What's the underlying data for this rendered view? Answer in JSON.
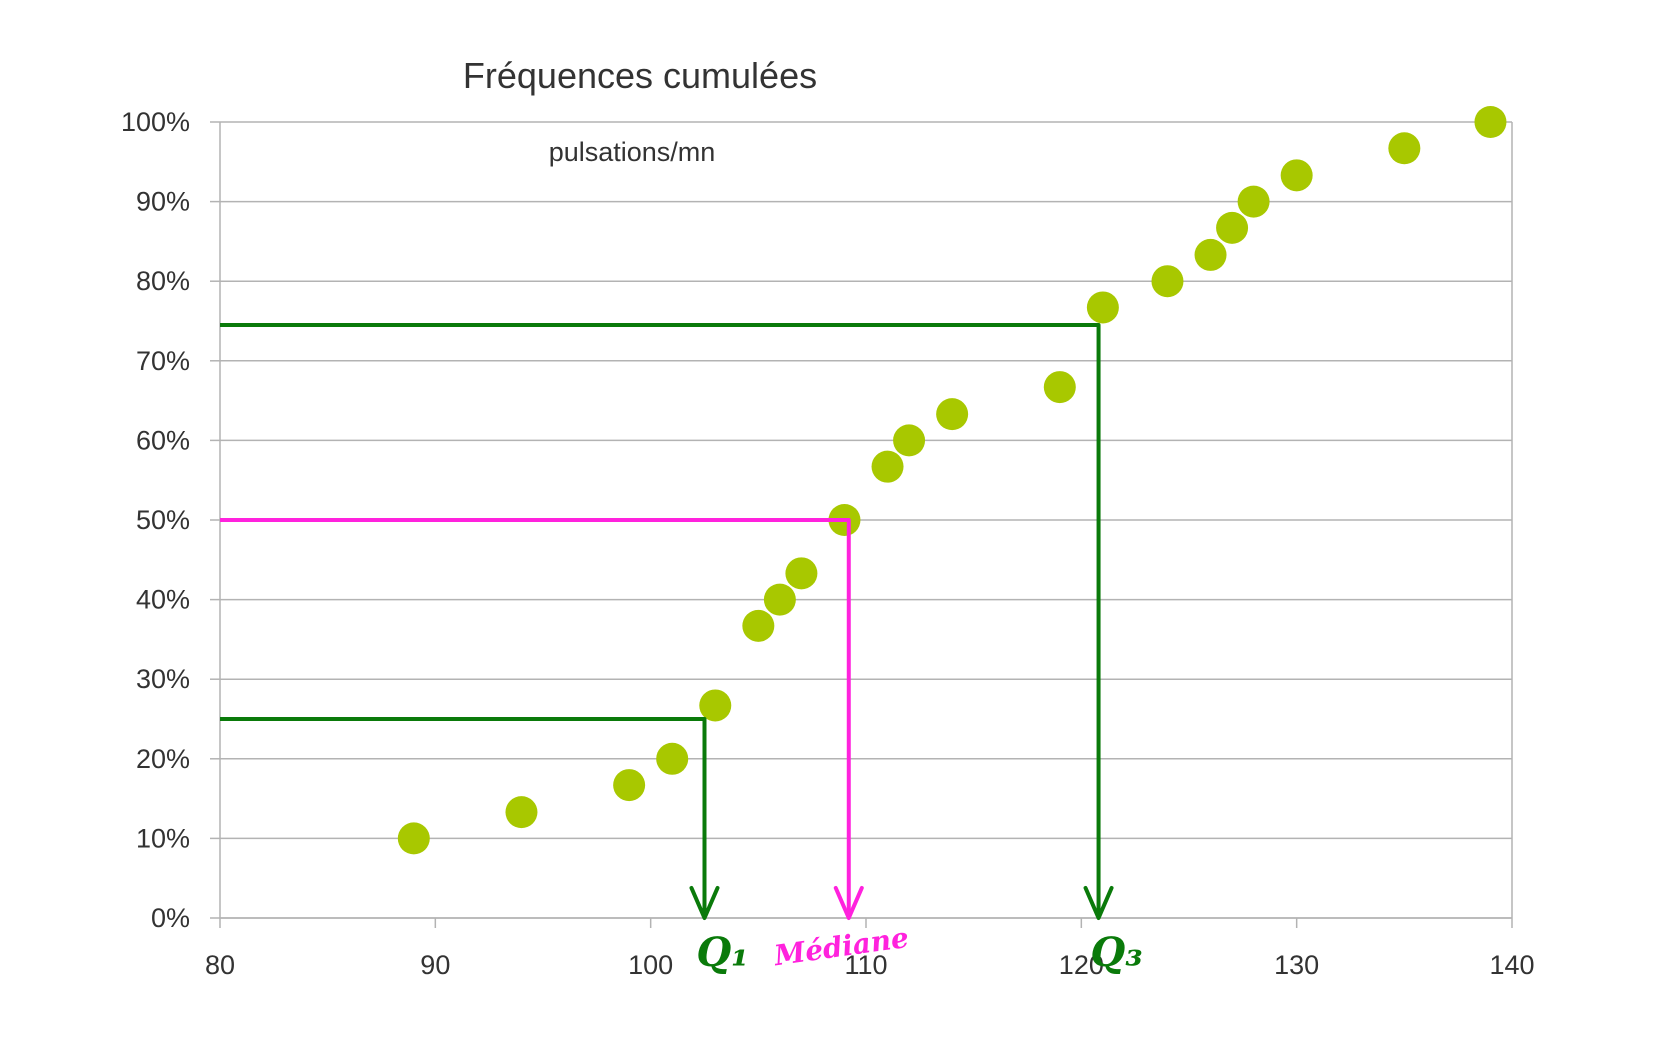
{
  "chart_data": {
    "type": "scatter",
    "title": "Fréquences cumulées",
    "subtitle": "pulsations/mn",
    "xlabel": "",
    "ylabel": "",
    "xlim": [
      80,
      140
    ],
    "ylim": [
      0,
      100
    ],
    "x_ticks": [
      80,
      90,
      100,
      110,
      120,
      130,
      140
    ],
    "y_ticks": [
      0,
      10,
      20,
      30,
      40,
      50,
      60,
      70,
      80,
      90,
      100
    ],
    "y_tick_suffix": "%",
    "grid": true,
    "marker_color": "#a8c800",
    "series": [
      {
        "x": [
          89,
          94,
          99,
          101,
          103,
          105,
          106,
          107,
          109,
          111,
          112,
          114,
          119,
          121,
          124,
          126,
          127,
          128,
          130,
          135,
          139
        ],
        "y": [
          10,
          13.3,
          16.7,
          20,
          26.7,
          36.7,
          40,
          43.3,
          50,
          56.7,
          60,
          63.3,
          66.7,
          76.7,
          80,
          83.3,
          86.7,
          90,
          93.3,
          96.7,
          100
        ]
      }
    ],
    "annotations": [
      {
        "label": "Q₁",
        "y_level": 25,
        "x_value": 102.5,
        "color": "#0a7a0a"
      },
      {
        "label": "Médiane",
        "y_level": 50,
        "x_value": 109.2,
        "color": "#ff22dd"
      },
      {
        "label": "Q₃",
        "y_level": 74.5,
        "x_value": 120.8,
        "color": "#0a7a0a"
      }
    ]
  }
}
